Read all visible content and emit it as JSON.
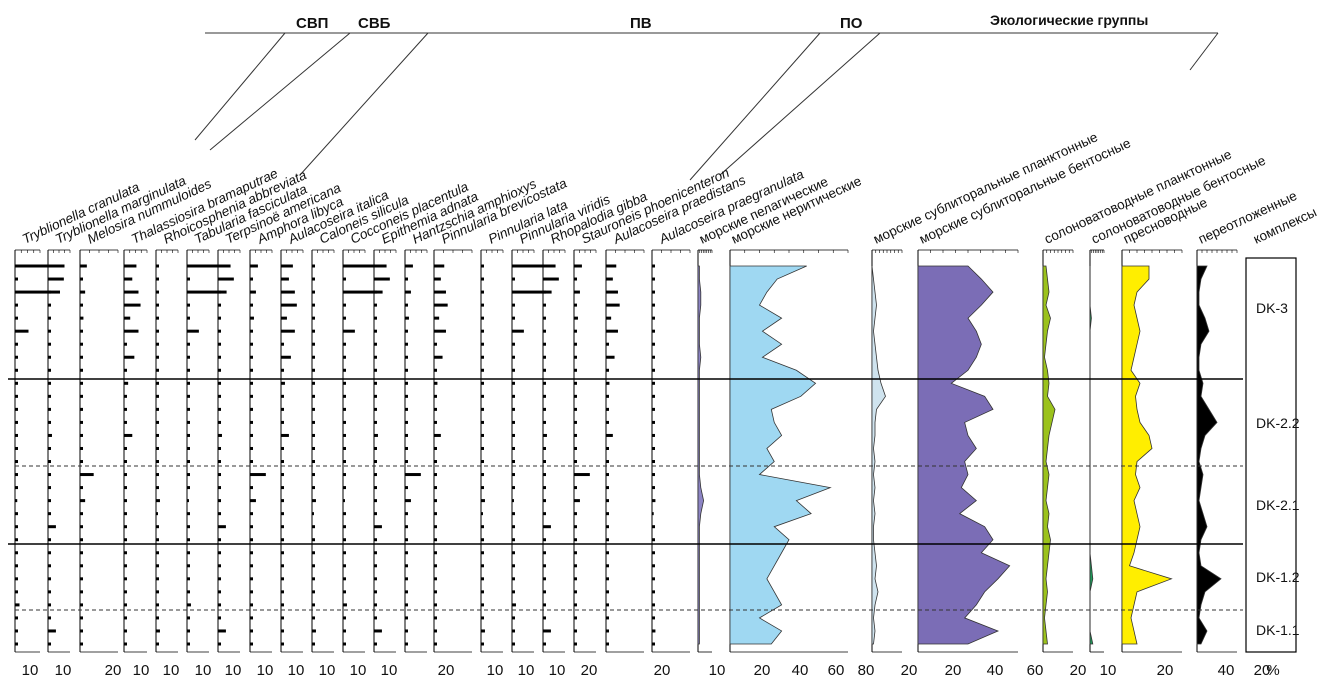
{
  "header": {
    "group_labels": [
      "СВП",
      "СВБ",
      "ПВ",
      "ПО"
    ],
    "ecological_title": "Экологические группы"
  },
  "taxa": [
    {
      "name": "Tryblionella cranulata",
      "max": 10
    },
    {
      "name": "Tryblionella marginulata",
      "max": 10
    },
    {
      "name": "Melosira nummuloides",
      "max": 20
    },
    {
      "name": "Thalassiosira bramaputrae",
      "max": 10
    },
    {
      "name": "Rhoicosphenia abbreviata",
      "max": 10
    },
    {
      "name": "Tabularia fasciculata",
      "max": 10
    },
    {
      "name": "Terpsinoё americana",
      "max": 10
    },
    {
      "name": "Amphora libyca",
      "max": 10
    },
    {
      "name": "Aulacoseira italica",
      "max": 10
    },
    {
      "name": "Caloneis silicula",
      "max": 10
    },
    {
      "name": "Cocconeis placentula",
      "max": 10
    },
    {
      "name": "Epithemia adnata",
      "max": 10
    },
    {
      "name": "Hantzschia amphioxys",
      "max": 10
    },
    {
      "name": "Pinnularia brevicostata",
      "max": 20
    },
    {
      "name": "Pinnularia lata",
      "max": 10
    },
    {
      "name": "Pinnularia viridis",
      "max": 10
    },
    {
      "name": "Rhopalodia gibba",
      "max": 10
    },
    {
      "name": "Stauroneis phoenicenteron",
      "max": 10
    },
    {
      "name": "Aulacoseira praedistans",
      "max": 20
    },
    {
      "name": "Aulacoseira praegranulata",
      "max": 20
    }
  ],
  "ecological_groups": [
    {
      "name": "морские пелагические",
      "max": 10,
      "color": "#8c84c4"
    },
    {
      "name": "морские неритические",
      "max": 80,
      "color": "#9fd8f2"
    },
    {
      "name": "морские сублиторальные планктонные",
      "max": 20,
      "color": "#cfe3ee"
    },
    {
      "name": "морские сублиторальные бентосные",
      "max": 60,
      "color": "#7b6db6"
    },
    {
      "name": "солоноватоводные планктонные",
      "max": 20,
      "color": "#9bc21c"
    },
    {
      "name": "солоноватоводные бентосные",
      "max": 10,
      "color": "#1f9a5a"
    },
    {
      "name": "пресноводные",
      "max": 40,
      "color": "#ffee00"
    },
    {
      "name": "переотложенные",
      "max": 20,
      "color": "#000000"
    }
  ],
  "complexes": {
    "header": "комплексы",
    "zones": [
      "DK-3",
      "DK-2.2",
      "DK-2.1",
      "DK-1.2",
      "DK-1.1"
    ]
  },
  "axis_ticks": [
    "10",
    "10",
    "20",
    "10",
    "10",
    "10",
    "10",
    "10",
    "10",
    "10",
    "10",
    "10",
    "20",
    "10",
    "10",
    "10",
    "20",
    "20",
    "10",
    "20",
    "40",
    "60",
    "80",
    "20",
    "20",
    "40",
    "60",
    "20",
    "10",
    "20",
    "40",
    "20",
    "%"
  ],
  "chart_data": {
    "type": "area",
    "y_samples": 30,
    "ylabel": "",
    "series": [
      {
        "name": "морские пелагические",
        "values": [
          1,
          1,
          2,
          2,
          1,
          1,
          1,
          2,
          1,
          1,
          1,
          1,
          1,
          1,
          1,
          1,
          1,
          2,
          4,
          2,
          1,
          1,
          1,
          1,
          1,
          1,
          1,
          1,
          1,
          1
        ],
        "xlim": [
          0,
          10
        ]
      },
      {
        "name": "морские неритические",
        "values": [
          52,
          32,
          25,
          20,
          35,
          22,
          35,
          22,
          45,
          58,
          48,
          28,
          30,
          35,
          25,
          30,
          20,
          68,
          45,
          55,
          30,
          40,
          35,
          30,
          25,
          30,
          35,
          20,
          35,
          28
        ],
        "xlim": [
          0,
          80
        ]
      },
      {
        "name": "морские сублиторальные планктонные",
        "values": [
          0,
          1,
          2,
          3,
          2,
          1,
          2,
          3,
          4,
          6,
          9,
          3,
          2,
          2,
          1,
          2,
          1,
          2,
          1,
          2,
          1,
          1,
          2,
          3,
          2,
          4,
          2,
          1,
          2,
          1
        ],
        "xlim": [
          0,
          20
        ]
      },
      {
        "name": "морские сублиторальные бентосные",
        "values": [
          30,
          38,
          45,
          38,
          30,
          35,
          38,
          35,
          30,
          20,
          40,
          45,
          28,
          30,
          35,
          28,
          30,
          26,
          35,
          25,
          40,
          45,
          38,
          55,
          48,
          40,
          35,
          28,
          48,
          30
        ],
        "xlim": [
          0,
          60
        ]
      },
      {
        "name": "солоноватоводные планктонные",
        "values": [
          2,
          3,
          4,
          2,
          5,
          3,
          2,
          1,
          3,
          4,
          3,
          8,
          6,
          4,
          3,
          2,
          4,
          3,
          2,
          4,
          3,
          5,
          4,
          3,
          2,
          3,
          2,
          1,
          2,
          3
        ],
        "xlim": [
          0,
          20
        ]
      },
      {
        "name": "солоноватоводные бентосные",
        "values": [
          0,
          0,
          0,
          0,
          1,
          0,
          0,
          0,
          0,
          0,
          0,
          0,
          0,
          0,
          0,
          0,
          0,
          0,
          0,
          0,
          0,
          0,
          0,
          1,
          2,
          0,
          0,
          0,
          0,
          2
        ],
        "xlim": [
          0,
          10
        ]
      },
      {
        "name": "пресноводные",
        "values": [
          18,
          18,
          10,
          8,
          10,
          12,
          10,
          8,
          6,
          12,
          9,
          10,
          12,
          18,
          20,
          10,
          9,
          12,
          8,
          10,
          12,
          10,
          8,
          5,
          33,
          10,
          8,
          6,
          8,
          10
        ],
        "xlim": [
          0,
          40
        ]
      },
      {
        "name": "переотложенные",
        "values": [
          5,
          2,
          1,
          1,
          4,
          6,
          2,
          1,
          1,
          3,
          2,
          6,
          10,
          4,
          2,
          1,
          3,
          2,
          1,
          3,
          5,
          2,
          1,
          2,
          12,
          4,
          2,
          1,
          5,
          2
        ],
        "xlim": [
          0,
          20
        ]
      }
    ],
    "taxa_bars": [
      [
        [
          22,
          0,
          20,
          0,
          0,
          6,
          0,
          0,
          0,
          0,
          0,
          0,
          0,
          0,
          0,
          0,
          0,
          0,
          1,
          0,
          0,
          0,
          0,
          0,
          0,
          0,
          2,
          0,
          0,
          0
        ]
      ],
      [
        [
          2,
          8,
          0,
          0,
          0,
          0,
          0,
          0,
          0,
          0,
          0,
          0,
          0,
          2,
          0,
          0,
          0,
          0,
          0,
          0,
          4,
          0,
          0,
          0,
          0,
          0,
          0,
          0,
          4,
          0
        ]
      ],
      [
        [
          4,
          0,
          3,
          0,
          2,
          0,
          0,
          0,
          0,
          0,
          0,
          0,
          0,
          0,
          0,
          0,
          8,
          0,
          3,
          0,
          0,
          0,
          0,
          0,
          0,
          0,
          0,
          0,
          0,
          0
        ]
      ],
      [
        [
          6,
          4,
          7,
          8,
          3,
          7,
          0,
          5,
          0,
          2,
          0,
          0,
          0,
          4,
          0,
          0,
          0,
          0,
          0,
          0,
          0,
          0,
          0,
          0,
          0,
          0,
          0,
          0,
          0,
          0
        ]
      ],
      [
        [
          0,
          0,
          0,
          0,
          0,
          0,
          0,
          0,
          0,
          0,
          0,
          0,
          0,
          0,
          0,
          0,
          0,
          0,
          2,
          1,
          0,
          0,
          0,
          0,
          0,
          0,
          0,
          0,
          2,
          0
        ]
      ]
    ]
  }
}
